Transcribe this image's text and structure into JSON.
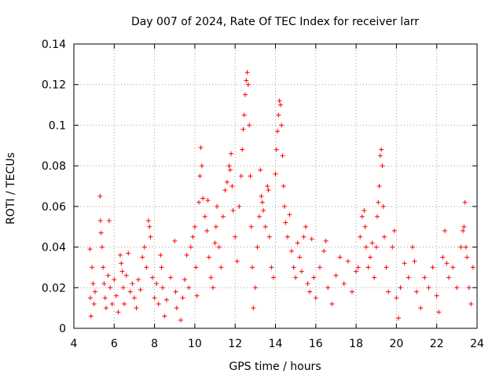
{
  "chart_data": {
    "type": "scatter",
    "title": "Day 007 of 2024, Rate Of TEC Index for receiver larr",
    "xlabel": "GPS time / hours",
    "ylabel": "ROTI / TECUs",
    "xlim": [
      4,
      24
    ],
    "ylim": [
      0,
      0.14
    ],
    "x_ticks": [
      "4",
      "6",
      "8",
      "10",
      "12",
      "14",
      "16",
      "18",
      "20",
      "22",
      "24"
    ],
    "y_ticks": [
      "0",
      "0.02",
      "0.04",
      "0.06",
      "0.08",
      "0.1",
      "0.12",
      "0.14"
    ],
    "grid": true,
    "marker": "+",
    "color": "#ff0000",
    "series": [
      {
        "points": [
          [
            4.8,
            0.039
          ],
          [
            4.82,
            0.015
          ],
          [
            4.85,
            0.006
          ],
          [
            4.9,
            0.03
          ],
          [
            4.95,
            0.022
          ],
          [
            5.0,
            0.012
          ],
          [
            5.05,
            0.018
          ],
          [
            5.3,
            0.065
          ],
          [
            5.32,
            0.053
          ],
          [
            5.35,
            0.047
          ],
          [
            5.4,
            0.04
          ],
          [
            5.45,
            0.03
          ],
          [
            5.5,
            0.022
          ],
          [
            5.55,
            0.015
          ],
          [
            5.6,
            0.01
          ],
          [
            5.7,
            0.026
          ],
          [
            5.75,
            0.053
          ],
          [
            5.8,
            0.02
          ],
          [
            5.9,
            0.012
          ],
          [
            6.0,
            0.024
          ],
          [
            6.1,
            0.016
          ],
          [
            6.2,
            0.008
          ],
          [
            6.3,
            0.036
          ],
          [
            6.35,
            0.032
          ],
          [
            6.4,
            0.028
          ],
          [
            6.45,
            0.02
          ],
          [
            6.5,
            0.012
          ],
          [
            6.6,
            0.026
          ],
          [
            6.7,
            0.037
          ],
          [
            6.8,
            0.018
          ],
          [
            6.9,
            0.022
          ],
          [
            7.0,
            0.015
          ],
          [
            7.1,
            0.01
          ],
          [
            7.2,
            0.024
          ],
          [
            7.3,
            0.019
          ],
          [
            7.4,
            0.035
          ],
          [
            7.5,
            0.04
          ],
          [
            7.6,
            0.03
          ],
          [
            7.7,
            0.053
          ],
          [
            7.75,
            0.05
          ],
          [
            7.8,
            0.045
          ],
          [
            7.9,
            0.025
          ],
          [
            8.0,
            0.015
          ],
          [
            8.1,
            0.022
          ],
          [
            8.2,
            0.012
          ],
          [
            8.3,
            0.036
          ],
          [
            8.35,
            0.03
          ],
          [
            8.4,
            0.02
          ],
          [
            8.5,
            0.006
          ],
          [
            8.6,
            0.014
          ],
          [
            8.8,
            0.025
          ],
          [
            9.0,
            0.043
          ],
          [
            9.05,
            0.018
          ],
          [
            9.1,
            0.01
          ],
          [
            9.3,
            0.004
          ],
          [
            9.4,
            0.015
          ],
          [
            9.5,
            0.024
          ],
          [
            9.6,
            0.036
          ],
          [
            9.7,
            0.02
          ],
          [
            9.8,
            0.04
          ],
          [
            9.9,
            0.045
          ],
          [
            10.0,
            0.05
          ],
          [
            10.05,
            0.03
          ],
          [
            10.1,
            0.016
          ],
          [
            10.2,
            0.062
          ],
          [
            10.25,
            0.075
          ],
          [
            10.3,
            0.089
          ],
          [
            10.35,
            0.08
          ],
          [
            10.4,
            0.064
          ],
          [
            10.5,
            0.055
          ],
          [
            10.6,
            0.048
          ],
          [
            10.65,
            0.063
          ],
          [
            10.7,
            0.035
          ],
          [
            10.8,
            0.025
          ],
          [
            10.9,
            0.02
          ],
          [
            11.0,
            0.042
          ],
          [
            11.05,
            0.05
          ],
          [
            11.1,
            0.06
          ],
          [
            11.2,
            0.04
          ],
          [
            11.3,
            0.03
          ],
          [
            11.4,
            0.055
          ],
          [
            11.5,
            0.068
          ],
          [
            11.6,
            0.072
          ],
          [
            11.7,
            0.08
          ],
          [
            11.75,
            0.078
          ],
          [
            11.8,
            0.086
          ],
          [
            11.85,
            0.07
          ],
          [
            11.9,
            0.058
          ],
          [
            12.0,
            0.045
          ],
          [
            12.1,
            0.033
          ],
          [
            12.2,
            0.06
          ],
          [
            12.3,
            0.075
          ],
          [
            12.35,
            0.088
          ],
          [
            12.4,
            0.098
          ],
          [
            12.45,
            0.105
          ],
          [
            12.5,
            0.115
          ],
          [
            12.55,
            0.122
          ],
          [
            12.6,
            0.126
          ],
          [
            12.65,
            0.12
          ],
          [
            12.7,
            0.1
          ],
          [
            12.75,
            0.075
          ],
          [
            12.8,
            0.05
          ],
          [
            12.85,
            0.03
          ],
          [
            12.9,
            0.01
          ],
          [
            13.0,
            0.02
          ],
          [
            13.1,
            0.04
          ],
          [
            13.2,
            0.055
          ],
          [
            13.25,
            0.078
          ],
          [
            13.3,
            0.065
          ],
          [
            13.35,
            0.062
          ],
          [
            13.4,
            0.058
          ],
          [
            13.5,
            0.05
          ],
          [
            13.6,
            0.07
          ],
          [
            13.65,
            0.068
          ],
          [
            13.7,
            0.045
          ],
          [
            13.8,
            0.03
          ],
          [
            13.9,
            0.025
          ],
          [
            14.0,
            0.076
          ],
          [
            14.05,
            0.088
          ],
          [
            14.1,
            0.097
          ],
          [
            14.15,
            0.105
          ],
          [
            14.2,
            0.112
          ],
          [
            14.25,
            0.11
          ],
          [
            14.3,
            0.1
          ],
          [
            14.35,
            0.085
          ],
          [
            14.4,
            0.07
          ],
          [
            14.45,
            0.06
          ],
          [
            14.5,
            0.052
          ],
          [
            14.6,
            0.045
          ],
          [
            14.7,
            0.056
          ],
          [
            14.8,
            0.038
          ],
          [
            14.9,
            0.03
          ],
          [
            15.0,
            0.025
          ],
          [
            15.1,
            0.042
          ],
          [
            15.2,
            0.035
          ],
          [
            15.3,
            0.028
          ],
          [
            15.4,
            0.045
          ],
          [
            15.5,
            0.05
          ],
          [
            15.6,
            0.022
          ],
          [
            15.7,
            0.018
          ],
          [
            15.8,
            0.044
          ],
          [
            15.9,
            0.025
          ],
          [
            16.0,
            0.015
          ],
          [
            16.2,
            0.03
          ],
          [
            16.4,
            0.038
          ],
          [
            16.5,
            0.043
          ],
          [
            16.6,
            0.02
          ],
          [
            16.8,
            0.012
          ],
          [
            17.0,
            0.026
          ],
          [
            17.2,
            0.035
          ],
          [
            17.4,
            0.022
          ],
          [
            17.6,
            0.033
          ],
          [
            17.8,
            0.018
          ],
          [
            18.0,
            0.028
          ],
          [
            18.1,
            0.03
          ],
          [
            18.2,
            0.045
          ],
          [
            18.3,
            0.055
          ],
          [
            18.4,
            0.058
          ],
          [
            18.45,
            0.05
          ],
          [
            18.5,
            0.04
          ],
          [
            18.6,
            0.03
          ],
          [
            18.7,
            0.035
          ],
          [
            18.8,
            0.042
          ],
          [
            18.9,
            0.025
          ],
          [
            19.0,
            0.04
          ],
          [
            19.05,
            0.055
          ],
          [
            19.1,
            0.062
          ],
          [
            19.15,
            0.07
          ],
          [
            19.2,
            0.085
          ],
          [
            19.25,
            0.088
          ],
          [
            19.3,
            0.08
          ],
          [
            19.35,
            0.06
          ],
          [
            19.4,
            0.045
          ],
          [
            19.5,
            0.03
          ],
          [
            19.6,
            0.018
          ],
          [
            19.8,
            0.04
          ],
          [
            19.9,
            0.048
          ],
          [
            20.0,
            0.015
          ],
          [
            20.1,
            0.005
          ],
          [
            20.2,
            0.02
          ],
          [
            20.4,
            0.032
          ],
          [
            20.6,
            0.025
          ],
          [
            20.8,
            0.04
          ],
          [
            20.9,
            0.033
          ],
          [
            21.0,
            0.018
          ],
          [
            21.2,
            0.01
          ],
          [
            21.4,
            0.025
          ],
          [
            21.6,
            0.02
          ],
          [
            21.8,
            0.03
          ],
          [
            22.0,
            0.016
          ],
          [
            22.1,
            0.008
          ],
          [
            22.3,
            0.035
          ],
          [
            22.4,
            0.048
          ],
          [
            22.5,
            0.032
          ],
          [
            22.6,
            0.025
          ],
          [
            22.8,
            0.03
          ],
          [
            23.0,
            0.02
          ],
          [
            23.2,
            0.04
          ],
          [
            23.3,
            0.048
          ],
          [
            23.35,
            0.05
          ],
          [
            23.4,
            0.062
          ],
          [
            23.45,
            0.04
          ],
          [
            23.5,
            0.035
          ],
          [
            23.6,
            0.02
          ],
          [
            23.7,
            0.012
          ],
          [
            23.8,
            0.03
          ]
        ]
      }
    ]
  }
}
